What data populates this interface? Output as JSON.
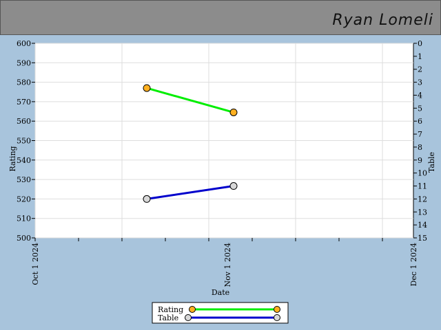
{
  "header": {
    "title": "Ryan Lomeli"
  },
  "chart_data": {
    "type": "line",
    "xlabel": "Date",
    "ylabel": "Rating",
    "y2label": "Table",
    "x_ticks": [
      "Oct 1 2024",
      "Nov 1 2024",
      "Dec 1 2024"
    ],
    "xlim": [
      "2024-10-01",
      "2024-12-01"
    ],
    "ylim": [
      500,
      600
    ],
    "y_ticks": [
      500,
      510,
      520,
      530,
      540,
      550,
      560,
      570,
      580,
      590,
      600
    ],
    "y2lim": [
      0,
      15
    ],
    "y2_inverted": true,
    "y2_ticks": [
      0,
      1,
      2,
      3,
      4,
      5,
      6,
      7,
      8,
      9,
      10,
      11,
      12,
      13,
      14,
      15
    ],
    "grid": true,
    "legend": "bottom-center",
    "series": [
      {
        "name": "Rating",
        "axis": "left",
        "color": "#00ee00",
        "marker_color": "#ffb020",
        "points": [
          {
            "x": "2024-10-19",
            "y": 577
          },
          {
            "x": "2024-11-02",
            "y": 564.5
          }
        ]
      },
      {
        "name": "Table",
        "axis": "right",
        "color": "#0000cc",
        "marker_color": "#d8d8d8",
        "points": [
          {
            "x": "2024-10-19",
            "y": 12
          },
          {
            "x": "2024-11-02",
            "y": 11
          }
        ]
      }
    ]
  }
}
